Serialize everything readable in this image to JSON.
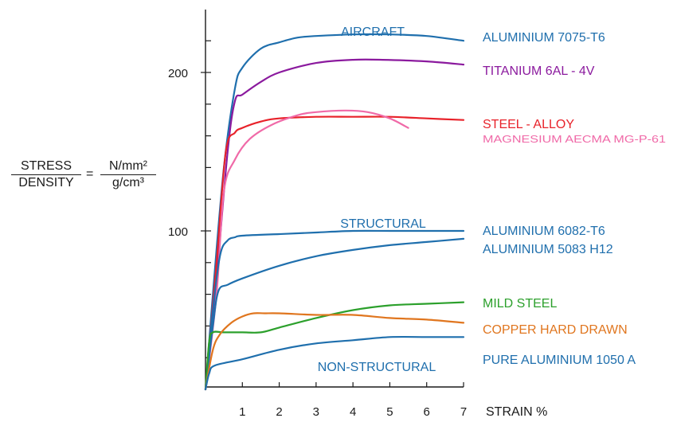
{
  "chart_data": {
    "type": "line",
    "xlabel": "STRAIN %",
    "ylabel": {
      "left_numerator": "STRESS",
      "left_denominator": "DENSITY",
      "equals": "=",
      "right_numerator": "N/mm²",
      "right_denominator": "g/cm³"
    },
    "xlim": [
      0,
      7
    ],
    "ylim": [
      0,
      245
    ],
    "x_ticks": [
      "1",
      "2",
      "3",
      "4",
      "5",
      "6",
      "7"
    ],
    "y_ticks": [
      "100",
      "200"
    ],
    "grid": false,
    "legend_placement": "right, end-of-line labels",
    "group_labels": [
      "AIRCRAFT",
      "STRUCTURAL",
      "NON-STRUCTURAL"
    ],
    "series": [
      {
        "name": "ALUMINIUM 7075-T6",
        "color": "#1f6fad",
        "x": [
          0,
          0.2,
          0.5,
          0.8,
          1.0,
          1.5,
          2.0,
          2.5,
          3.0,
          4.0,
          5.0,
          6.0,
          7.0
        ],
        "y": [
          0,
          60,
          140,
          190,
          203,
          215,
          219,
          222,
          223,
          224,
          224,
          223,
          220
        ]
      },
      {
        "name": "TITANIUM 6AL - 4V",
        "color": "#8b1a9e",
        "x": [
          0,
          0.3,
          0.6,
          0.8,
          1.0,
          1.5,
          2.0,
          3.0,
          4.0,
          4.8,
          6.0,
          7.0
        ],
        "y": [
          0,
          70,
          150,
          182,
          186,
          194,
          200,
          206,
          208,
          208,
          207,
          205
        ]
      },
      {
        "name": "STEEL - ALLOY",
        "color": "#e8222a",
        "x": [
          0,
          0.3,
          0.55,
          0.8,
          1.0,
          1.5,
          2.0,
          3.0,
          4.0,
          5.0,
          6.0,
          7.0
        ],
        "y": [
          0,
          80,
          150,
          162,
          165,
          169,
          171,
          172,
          172,
          172,
          171,
          170
        ]
      },
      {
        "name": "MAGNESIUM AECMA MG-P-61",
        "color": "#f06aa8",
        "x": [
          0,
          0.3,
          0.5,
          0.8,
          1.2,
          1.8,
          2.5,
          3.0,
          3.8,
          4.4,
          5.0,
          5.5
        ],
        "y": [
          0,
          60,
          125,
          145,
          158,
          167,
          173,
          175,
          176,
          175,
          171,
          165
        ]
      },
      {
        "name": "ALUMINIUM 6082-T6",
        "color": "#1f6fad",
        "x": [
          0,
          0.2,
          0.4,
          0.6,
          0.8,
          1.0,
          2.0,
          3.0,
          4.0,
          5.0,
          6.0,
          7.0
        ],
        "y": [
          0,
          50,
          85,
          94,
          96,
          97,
          98,
          99,
          100,
          100,
          100,
          100
        ]
      },
      {
        "name": "ALUMINIUM 5083 H12",
        "color": "#1f6fad",
        "x": [
          0,
          0.2,
          0.35,
          0.6,
          1.0,
          2.0,
          3.0,
          4.0,
          5.0,
          6.0,
          7.0
        ],
        "y": [
          0,
          40,
          62,
          66,
          70,
          78,
          84,
          88,
          91,
          93,
          95
        ]
      },
      {
        "name": "MILD STEEL",
        "color": "#2ca02c",
        "x": [
          0,
          0.1,
          0.2,
          0.5,
          1.0,
          1.5,
          2.0,
          3.0,
          4.0,
          5.0,
          6.0,
          7.0
        ],
        "y": [
          0,
          30,
          36,
          36,
          36,
          36,
          39,
          45,
          50,
          53,
          54,
          55
        ]
      },
      {
        "name": "COPPER HARD DRAWN",
        "color": "#e0761f",
        "x": [
          0,
          0.2,
          0.4,
          0.7,
          1.0,
          1.3,
          1.6,
          2.0,
          3.0,
          4.0,
          5.0,
          6.0,
          7.0
        ],
        "y": [
          0,
          25,
          35,
          42,
          46,
          48,
          48,
          48,
          47,
          47,
          45,
          44,
          42
        ]
      },
      {
        "name": "PURE ALUMINIUM 1050 A",
        "color": "#1f6fad",
        "x": [
          0,
          0.1,
          0.25,
          1.0,
          2.0,
          3.0,
          4.0,
          5.0,
          6.0,
          7.0
        ],
        "y": [
          0,
          10,
          15,
          19,
          25,
          29,
          31,
          33,
          33,
          33
        ]
      }
    ]
  }
}
